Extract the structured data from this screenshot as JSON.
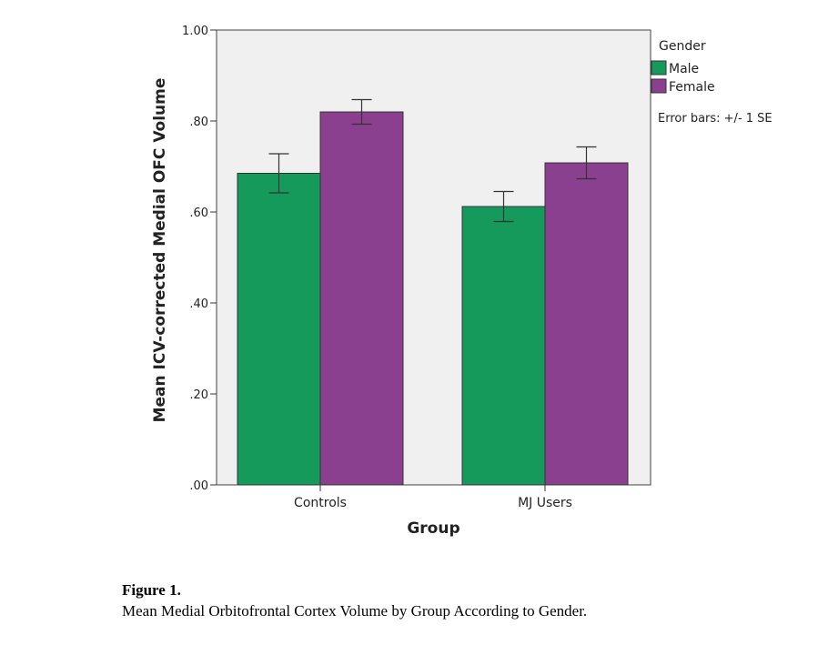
{
  "chart_data": {
    "type": "bar",
    "categories": [
      "Controls",
      "MJ Users"
    ],
    "series": [
      {
        "name": "Male",
        "color": "#169a5c",
        "values": [
          0.685,
          0.612
        ],
        "se": [
          0.043,
          0.033
        ]
      },
      {
        "name": "Female",
        "color": "#8b3f8f",
        "values": [
          0.82,
          0.708
        ],
        "se": [
          0.027,
          0.035
        ]
      }
    ],
    "xlabel": "Group",
    "ylabel": "Mean ICV-corrected Medial OFC Volume",
    "ylim": [
      0,
      1
    ],
    "yticks": [
      {
        "value": 0,
        "label": ".00"
      },
      {
        "value": 0.2,
        "label": ".20"
      },
      {
        "value": 0.4,
        "label": ".40"
      },
      {
        "value": 0.6,
        "label": ".60"
      },
      {
        "value": 0.8,
        "label": ".80"
      },
      {
        "value": 1.0,
        "label": "1.00"
      }
    ],
    "legend_title": "Gender",
    "legend_placement": "right",
    "note": "Error bars: +/- 1 SE",
    "plot_background": "#f0f0f0",
    "grid": false
  },
  "caption": {
    "label": "Figure 1.",
    "text": "Mean Medial Orbitofrontal Cortex Volume by Group According to Gender."
  }
}
